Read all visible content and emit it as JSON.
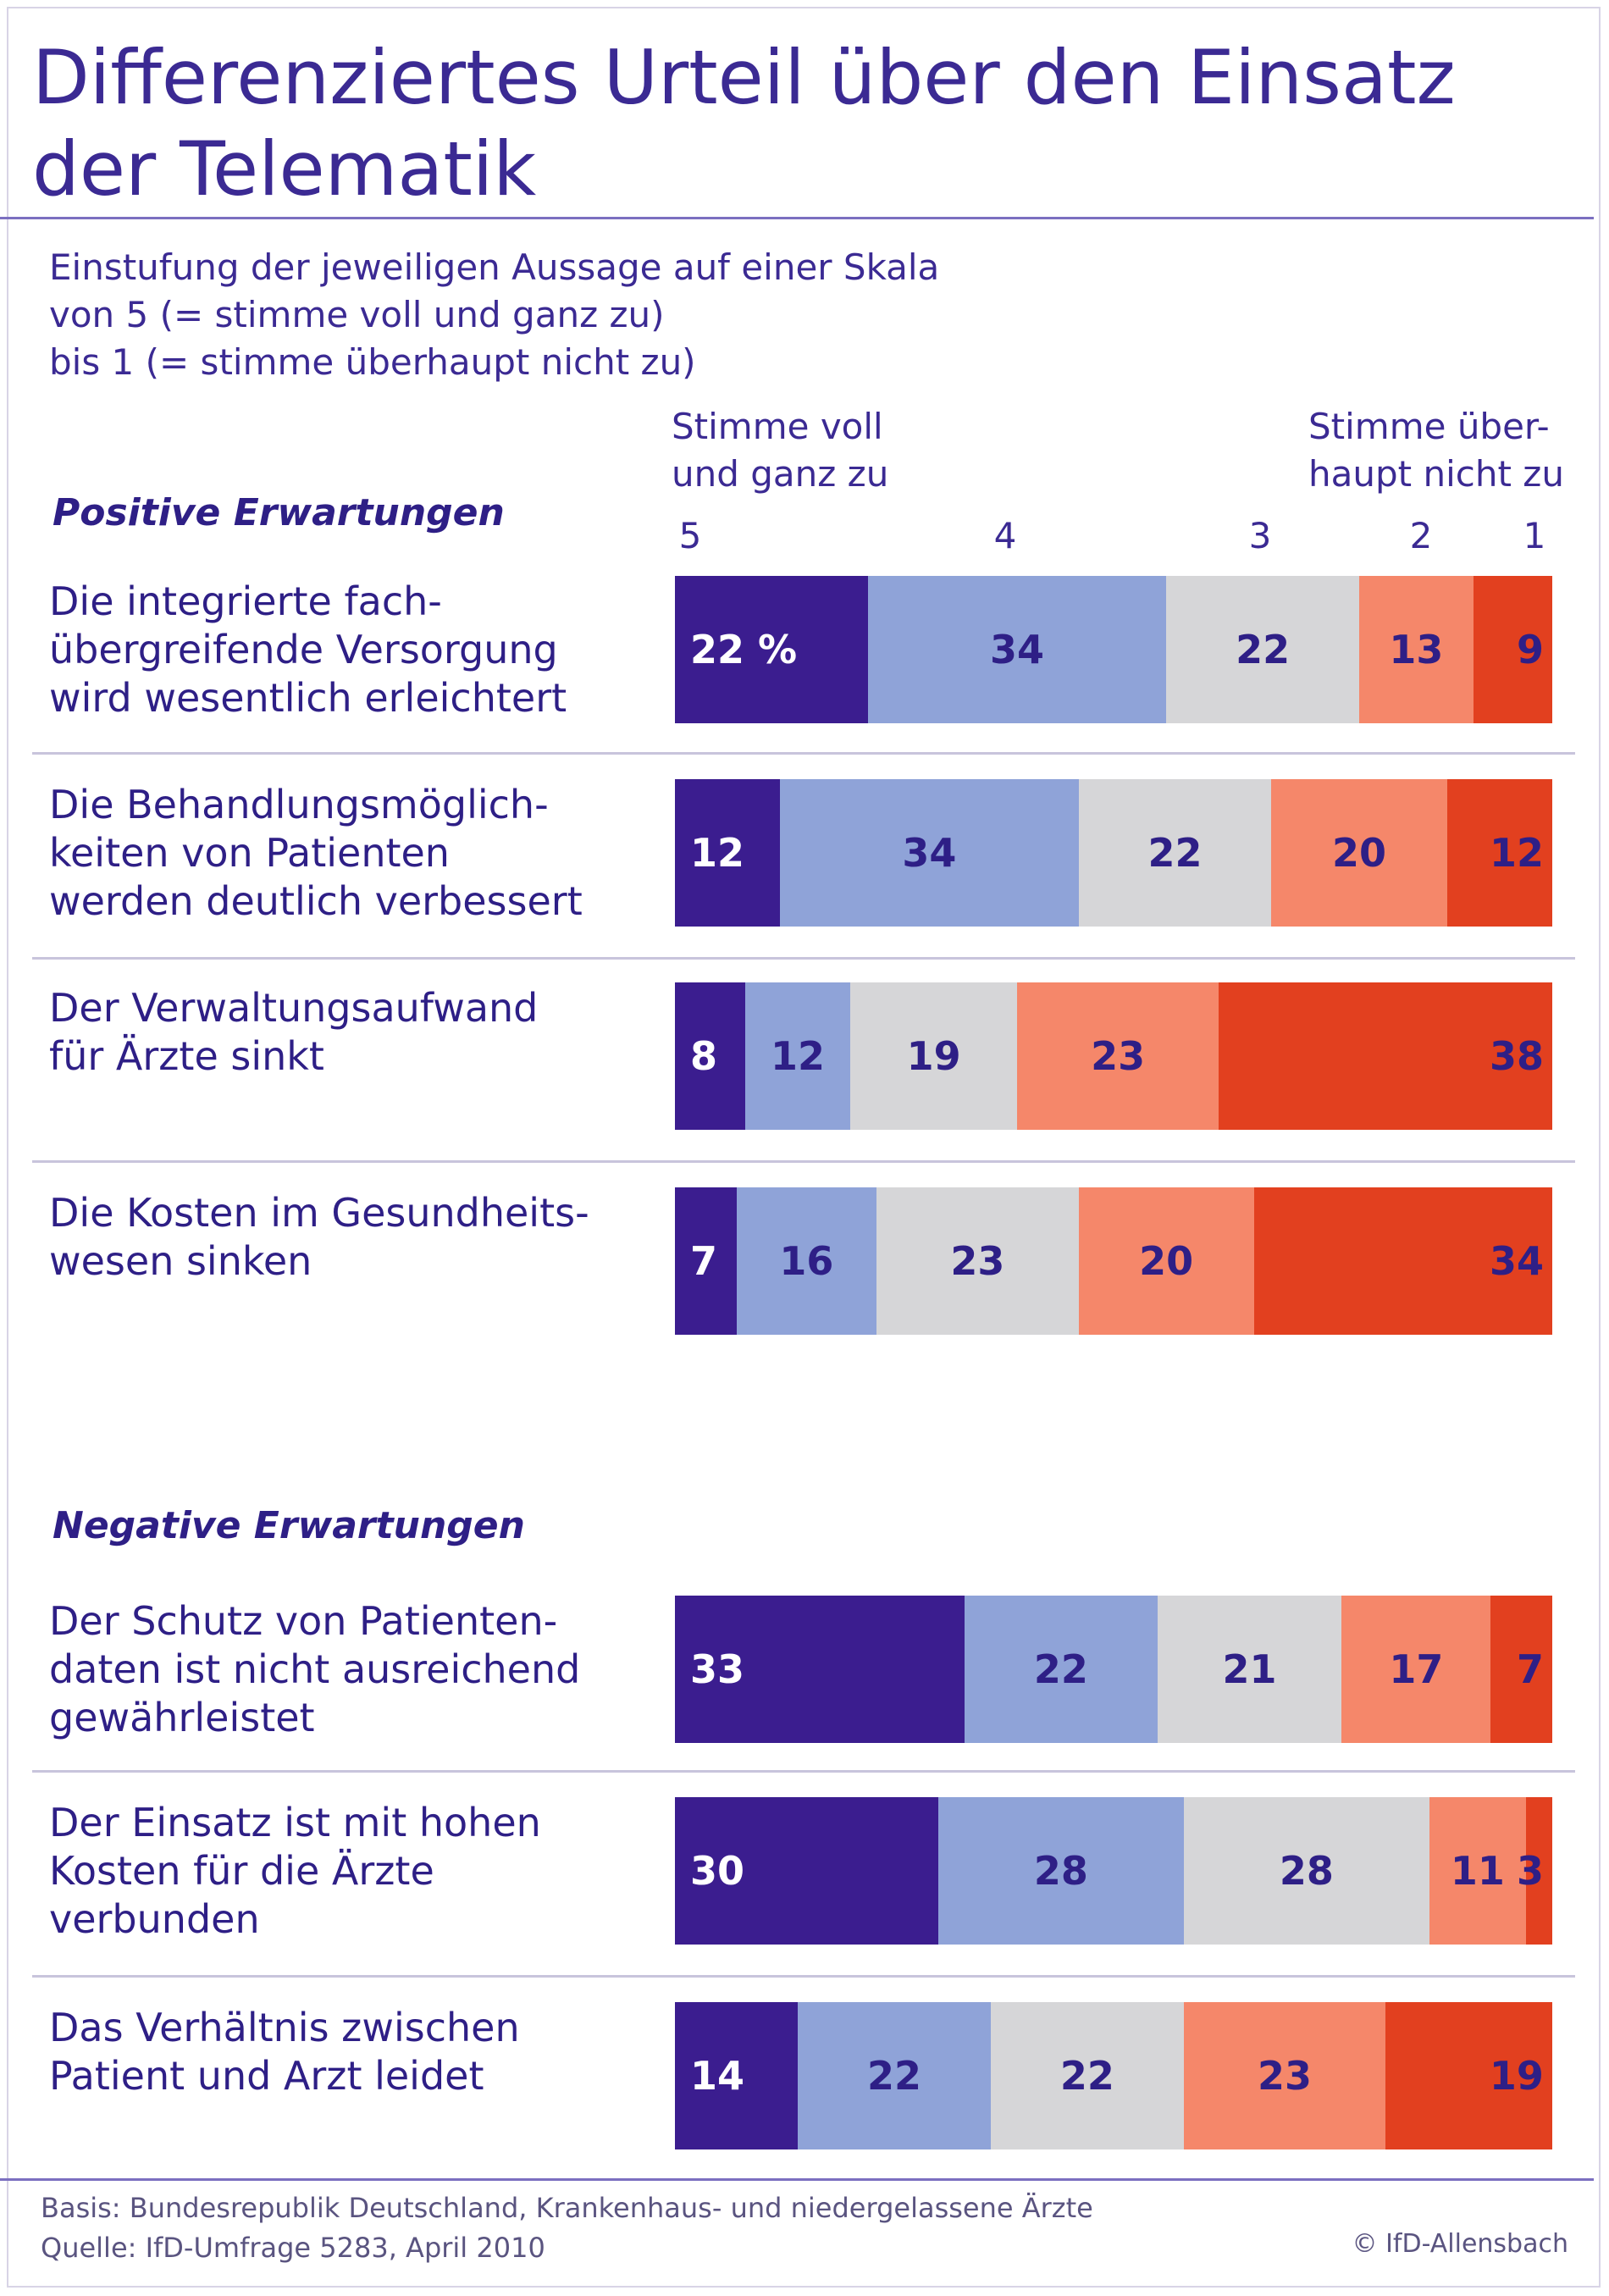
{
  "title": "Differenziertes Urteil über den Einsatz der Telematik",
  "subtitle": [
    "Einstufung der jeweiligen Aussage auf einer Skala",
    "von 5 (= stimme voll und ganz zu)",
    "bis 1 (= stimme überhaupt nicht zu)"
  ],
  "scale_left_label": [
    "Stimme voll",
    "und ganz zu"
  ],
  "scale_right_label": [
    "Stimme über-",
    "haupt nicht zu"
  ],
  "scale_numbers": [
    "5",
    "4",
    "3",
    "2",
    "1"
  ],
  "footer": {
    "basis": "Basis: Bundesrepublik Deutschland, Krankenhaus- und niedergelassene Ärzte",
    "quelle": "Quelle: IfD-Umfrage 5283, April 2010",
    "copyright": "© IfD-Allensbach"
  },
  "colors": {
    "5": "#3b1d8f",
    "4": "#8fa3d8",
    "3": "#d6d6d8",
    "2": "#f5876a",
    "1": "#e2401f"
  },
  "chart_data": {
    "type": "bar",
    "orientation": "horizontal-stacked-100",
    "title": "Differenziertes Urteil über den Einsatz der Telematik",
    "unit": "%",
    "series": [
      {
        "name": "5"
      },
      {
        "name": "4"
      },
      {
        "name": "3"
      },
      {
        "name": "2"
      },
      {
        "name": "1"
      }
    ],
    "groups": [
      {
        "name": "Positive Erwartungen",
        "rows": [
          {
            "label": [
              "Die integrierte fach-",
              "übergreifende Versorgung",
              "wird wesentlich erleichtert"
            ],
            "values": [
              22,
              34,
              22,
              13,
              9
            ],
            "value_labels": [
              "22 %",
              "34",
              "22",
              "13",
              "9"
            ]
          },
          {
            "label": [
              "Die Behandlungsmöglich-",
              "keiten von Patienten",
              "werden deutlich verbessert"
            ],
            "values": [
              12,
              34,
              22,
              20,
              12
            ],
            "value_labels": [
              "12",
              "34",
              "22",
              "20",
              "12"
            ]
          },
          {
            "label": [
              "Der Verwaltungsaufwand",
              "für Ärzte sinkt"
            ],
            "values": [
              8,
              12,
              19,
              23,
              38
            ],
            "value_labels": [
              "8",
              "12",
              "19",
              "23",
              "38"
            ]
          },
          {
            "label": [
              "Die Kosten im Gesundheits-",
              "wesen sinken"
            ],
            "values": [
              7,
              16,
              23,
              20,
              34
            ],
            "value_labels": [
              "7",
              "16",
              "23",
              "20",
              "34"
            ]
          }
        ]
      },
      {
        "name": "Negative Erwartungen",
        "rows": [
          {
            "label": [
              "Der Schutz von Patienten-",
              "daten ist nicht ausreichend",
              "gewährleistet"
            ],
            "values": [
              33,
              22,
              21,
              17,
              7
            ],
            "value_labels": [
              "33",
              "22",
              "21",
              "17",
              "7"
            ]
          },
          {
            "label": [
              "Der Einsatz ist mit hohen",
              "Kosten für die Ärzte",
              "verbunden"
            ],
            "values": [
              30,
              28,
              28,
              11,
              3
            ],
            "value_labels": [
              "30",
              "28",
              "28",
              "11",
              "3"
            ]
          },
          {
            "label": [
              "Das Verhältnis zwischen",
              "Patient und Arzt leidet"
            ],
            "values": [
              14,
              22,
              22,
              23,
              19
            ],
            "value_labels": [
              "14",
              "22",
              "22",
              "23",
              "19"
            ]
          }
        ]
      }
    ]
  }
}
